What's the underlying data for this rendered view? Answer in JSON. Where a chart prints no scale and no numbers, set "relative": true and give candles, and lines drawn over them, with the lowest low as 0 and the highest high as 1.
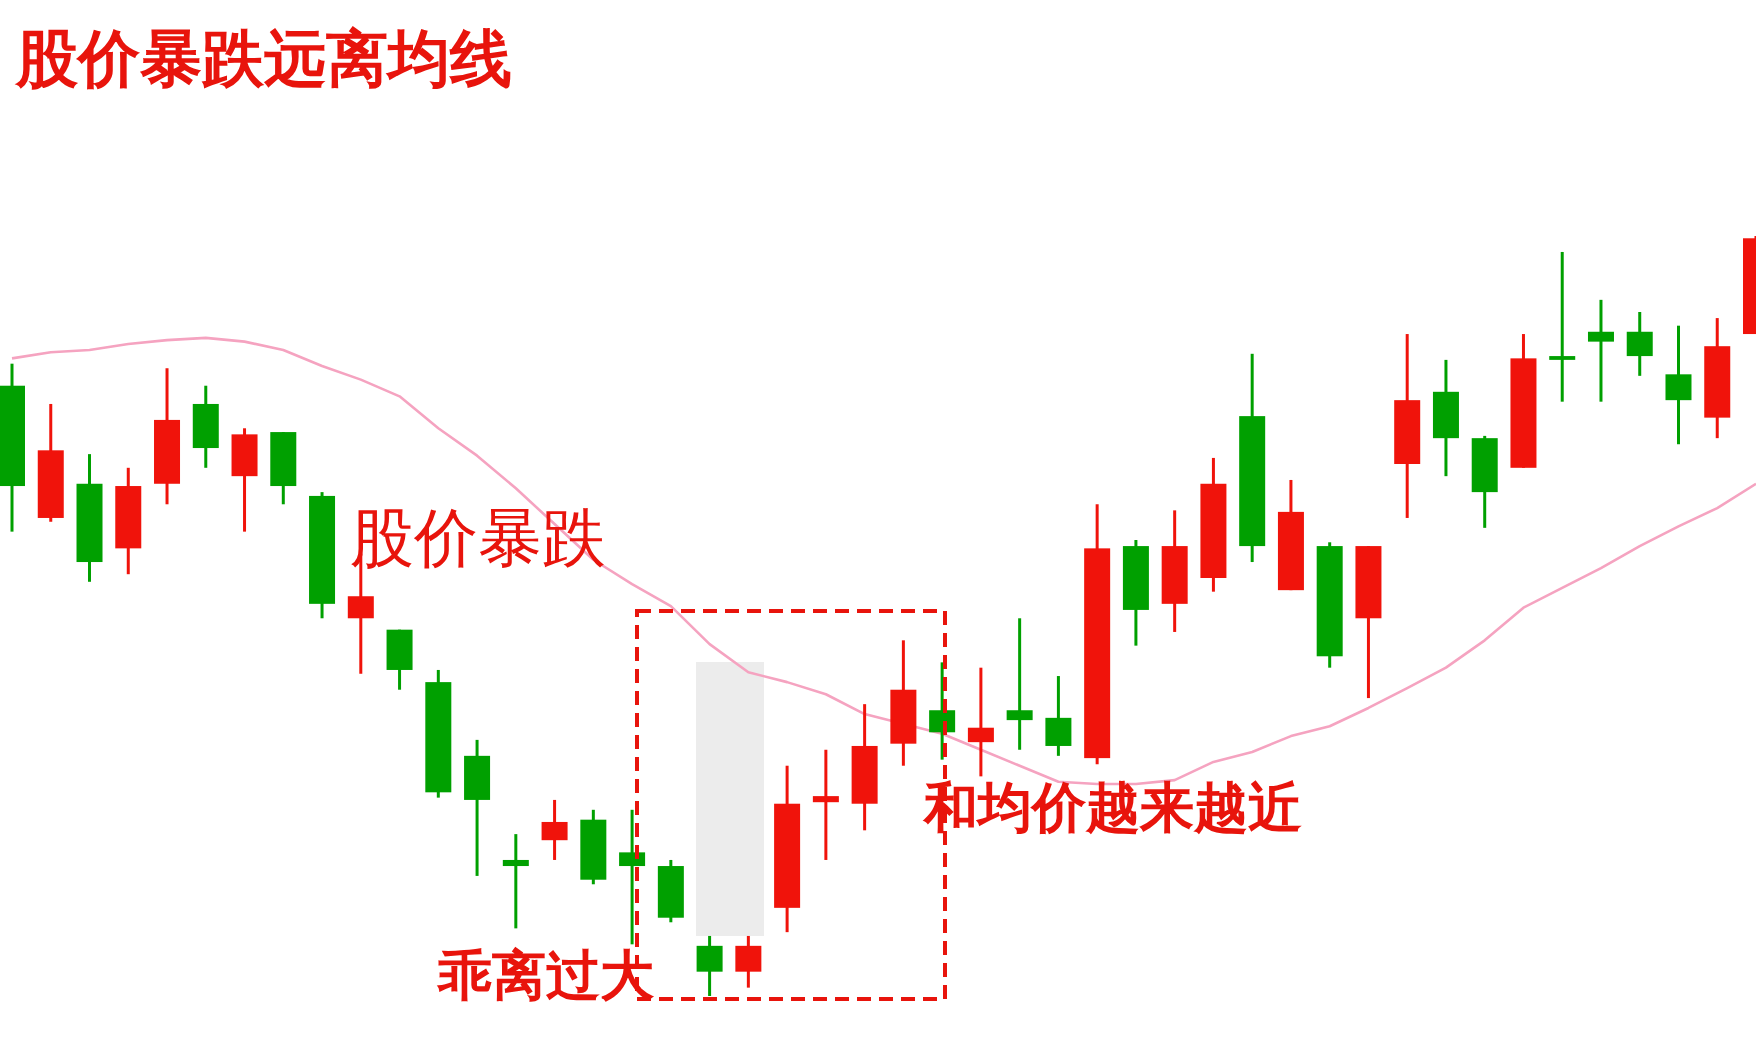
{
  "chart_data": {
    "type": "candlestick",
    "title": "股价暴跌远离均线",
    "relative": true,
    "categories": [
      null,
      null,
      null,
      null,
      null,
      null,
      null,
      null,
      null,
      null,
      null,
      null,
      null,
      null,
      null,
      null,
      null,
      null,
      null,
      null,
      null,
      null,
      null,
      null,
      null,
      null,
      null,
      null,
      null,
      null,
      null,
      null,
      null,
      null,
      null,
      null,
      null,
      null,
      null,
      null,
      null,
      null,
      null,
      null,
      null,
      null
    ],
    "series": [
      {
        "type": "candlestick",
        "ohlc": [
          [
            0.803,
            0.832,
            0.611,
            0.671
          ],
          [
            0.629,
            0.779,
            0.624,
            0.718
          ],
          [
            0.674,
            0.713,
            0.545,
            0.571
          ],
          [
            0.589,
            0.695,
            0.555,
            0.671
          ],
          [
            0.674,
            0.826,
            0.647,
            0.758
          ],
          [
            0.779,
            0.803,
            0.695,
            0.721
          ],
          [
            0.684,
            0.747,
            0.611,
            0.739
          ],
          [
            0.742,
            0.742,
            0.647,
            0.671
          ],
          [
            0.658,
            0.663,
            0.497,
            0.516
          ],
          [
            0.497,
            0.582,
            0.424,
            0.526
          ],
          [
            0.482,
            0.482,
            0.403,
            0.429
          ],
          [
            0.413,
            0.429,
            0.261,
            0.268
          ],
          [
            0.316,
            0.337,
            0.158,
            0.258
          ],
          [
            0.179,
            0.213,
            0.089,
            0.171
          ],
          [
            0.205,
            0.258,
            0.179,
            0.229
          ],
          [
            0.232,
            0.245,
            0.147,
            0.153
          ],
          [
            0.189,
            0.245,
            0.068,
            0.171
          ],
          [
            0.171,
            0.179,
            0.097,
            0.103
          ],
          [
            0.066,
            0.079,
            0,
            0.032
          ],
          [
            0.032,
            0.079,
            0.011,
            0.066
          ],
          [
            0.116,
            0.303,
            0.084,
            0.253
          ],
          [
            0.255,
            0.324,
            0.179,
            0.263
          ],
          [
            0.253,
            0.384,
            0.218,
            0.329
          ],
          [
            0.332,
            0.468,
            0.303,
            0.403
          ],
          [
            0.376,
            0.439,
            0.311,
            0.347
          ],
          [
            0.334,
            0.432,
            0.289,
            0.353
          ],
          [
            0.376,
            0.497,
            0.324,
            0.363
          ],
          [
            0.366,
            0.421,
            0.316,
            0.329
          ],
          [
            0.313,
            0.647,
            0.305,
            0.589
          ],
          [
            0.592,
            0.6,
            0.461,
            0.508
          ],
          [
            0.516,
            0.639,
            0.479,
            0.592
          ],
          [
            0.55,
            0.708,
            0.532,
            0.674
          ],
          [
            0.763,
            0.845,
            0.571,
            0.592
          ],
          [
            0.534,
            0.679,
            0.534,
            0.637
          ],
          [
            0.592,
            0.597,
            0.432,
            0.447
          ],
          [
            0.497,
            0.592,
            0.392,
            0.592
          ],
          [
            0.7,
            0.871,
            0.629,
            0.784
          ],
          [
            0.795,
            0.837,
            0.684,
            0.734
          ],
          [
            0.734,
            0.737,
            0.616,
            0.663
          ],
          [
            0.695,
            0.871,
            0.695,
            0.839
          ],
          [
            0.842,
            0.979,
            0.782,
            0.837
          ],
          [
            0.874,
            0.916,
            0.782,
            0.861
          ],
          [
            0.874,
            0.9,
            0.816,
            0.842
          ],
          [
            0.818,
            0.882,
            0.726,
            0.784
          ],
          [
            0.761,
            0.892,
            0.734,
            0.855
          ],
          [
            0.871,
            1,
            0.871,
            0.997
          ]
        ],
        "colors": [
          "#00a000",
          "#f0130b",
          "#00a000",
          "#f0130b",
          "#f0130b",
          "#00a000",
          "#f0130b",
          "#00a000",
          "#00a000",
          "#f0130b",
          "#00a000",
          "#00a000",
          "#00a000",
          "#00a000",
          "#f0130b",
          "#00a000",
          "#00a000",
          "#00a000",
          "#00a000",
          "#f0130b",
          "#f0130b",
          "#f0130b",
          "#f0130b",
          "#f0130b",
          "#00a000",
          "#f0130b",
          "#00a000",
          "#00a000",
          "#f0130b",
          "#00a000",
          "#f0130b",
          "#f0130b",
          "#00a000",
          "#f0130b",
          "#00a000",
          "#f0130b",
          "#f0130b",
          "#00a000",
          "#00a000",
          "#f0130b",
          "#00a000",
          "#00a000",
          "#00a000",
          "#00a000",
          "#f0130b",
          "#f0130b"
        ]
      },
      {
        "type": "line",
        "color": "#f5a3c0",
        "values": [
          0.839,
          0.847,
          0.85,
          0.858,
          0.863,
          0.866,
          0.861,
          0.85,
          0.829,
          0.811,
          0.789,
          0.747,
          0.711,
          0.668,
          0.621,
          0.574,
          0.542,
          0.513,
          0.463,
          0.426,
          0.413,
          0.397,
          0.371,
          null,
          0.345,
          0.324,
          0.303,
          0.282,
          0.279,
          0.279,
          0.284,
          0.308,
          0.321,
          0.342,
          0.355,
          0.379,
          0.405,
          0.432,
          0.468,
          0.511,
          0.537,
          0.563,
          0.592,
          0.618,
          0.642,
          0.674
        ]
      }
    ],
    "annotations": [
      "股价暴跌",
      "乖离过大",
      "和均价越来越近"
    ]
  }
}
